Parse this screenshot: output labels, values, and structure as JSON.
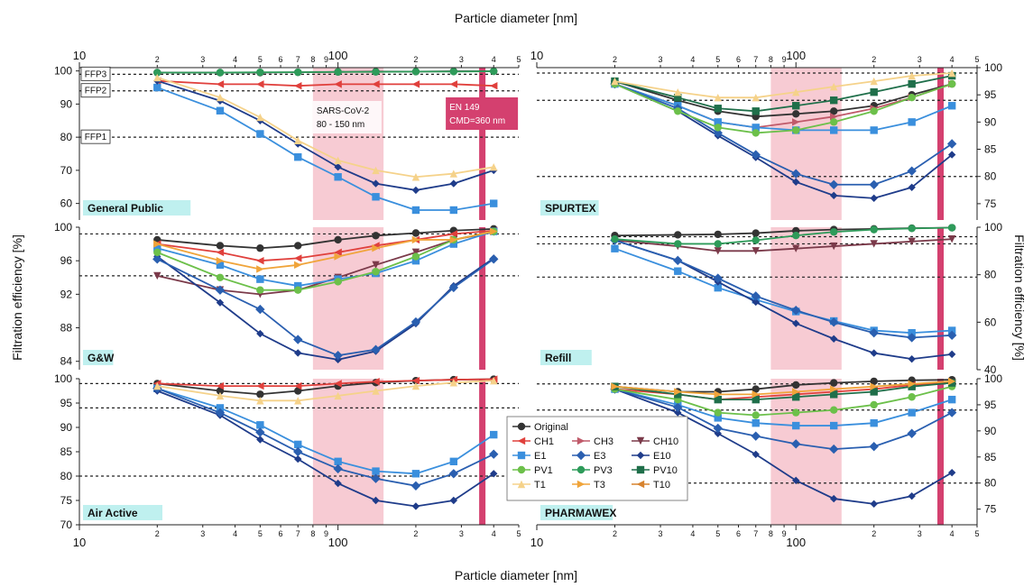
{
  "figure": {
    "top_xlabel": "Particle diameter [nm]",
    "bottom_xlabel": "Particle diameter [nm]",
    "left_ylabel": "Filtration efficiency [%]",
    "right_ylabel": "Filtration efficiency [%]",
    "band_color": "#f4b9c4",
    "mpps_line_color": "#d4406f",
    "sars_label": [
      "SARS-CoV-2",
      "80 - 150 nm"
    ],
    "en_label": [
      "EN 149",
      "CMD=360 nm"
    ],
    "ffp_labels": [
      "FFP3",
      "FFP2",
      "FFP1"
    ],
    "x_axis": {
      "scale": "log",
      "xlim": [
        10,
        500
      ],
      "decade_labels": [
        "10",
        "100"
      ],
      "minor_labels": [
        "2",
        "3",
        "4",
        "5",
        "6",
        "7",
        "8",
        "9",
        "2",
        "3",
        "4",
        "5"
      ]
    }
  },
  "legend": {
    "entries": [
      {
        "name": "Original",
        "color": "#333333",
        "marker": "circle"
      },
      {
        "name": "CH1",
        "color": "#e0403c",
        "marker": "triangle-left"
      },
      {
        "name": "CH3",
        "color": "#c05a6a",
        "marker": "triangle-right"
      },
      {
        "name": "CH10",
        "color": "#7b3a4a",
        "marker": "triangle-down"
      },
      {
        "name": "E1",
        "color": "#3a8fdd",
        "marker": "square"
      },
      {
        "name": "E3",
        "color": "#2a5fb0",
        "marker": "diamond"
      },
      {
        "name": "E10",
        "color": "#1f3c8a",
        "marker": "diamond-small"
      },
      {
        "name": "PV1",
        "color": "#6cc04a",
        "marker": "circle"
      },
      {
        "name": "PV3",
        "color": "#2e9b5a",
        "marker": "hexagon"
      },
      {
        "name": "PV10",
        "color": "#1f6f4a",
        "marker": "square"
      },
      {
        "name": "T1",
        "color": "#f5d28a",
        "marker": "triangle-up"
      },
      {
        "name": "T3",
        "color": "#f0a43a",
        "marker": "triangle-right"
      },
      {
        "name": "T10",
        "color": "#d7832f",
        "marker": "triangle-left"
      }
    ]
  },
  "chart_data": [
    {
      "type": "line",
      "panel_label": "General Public",
      "ylim": [
        55,
        101
      ],
      "yticks": [
        60,
        70,
        80,
        90,
        100
      ],
      "ref_lines": [
        99,
        94,
        80
      ],
      "x": [
        20,
        35,
        50,
        70,
        100,
        140,
        200,
        280,
        400
      ],
      "series": [
        {
          "name": "Original",
          "values": [
            99.5,
            99.5,
            99.5,
            99.6,
            99.7,
            99.8,
            99.8,
            99.9,
            99.9
          ]
        },
        {
          "name": "CH1",
          "values": [
            97,
            96,
            96,
            95.5,
            96,
            96,
            96,
            96,
            95.5
          ]
        },
        {
          "name": "E1",
          "values": [
            95,
            88,
            81,
            74,
            68,
            62,
            58,
            58,
            60
          ]
        },
        {
          "name": "E10",
          "values": [
            97,
            91,
            85,
            78,
            71,
            66,
            64,
            66,
            70
          ]
        },
        {
          "name": "PV3",
          "values": [
            99.5,
            99.5,
            99.6,
            99.6,
            99.7,
            99.7,
            99.8,
            99.8,
            99.9
          ]
        },
        {
          "name": "T1",
          "values": [
            98,
            92,
            86,
            79,
            73,
            70,
            68,
            69,
            71
          ]
        }
      ]
    },
    {
      "type": "line",
      "panel_label": "SPURTEX",
      "ylim": [
        72,
        100
      ],
      "yticks": [
        75,
        80,
        85,
        90,
        95,
        100
      ],
      "ref_lines": [
        99,
        94,
        80
      ],
      "x": [
        20,
        35,
        50,
        70,
        100,
        140,
        200,
        280,
        400
      ],
      "series": [
        {
          "name": "Original",
          "values": [
            97.5,
            94,
            92,
            91,
            91.5,
            92,
            93,
            95,
            97
          ]
        },
        {
          "name": "CH3",
          "values": [
            97,
            93,
            90,
            89,
            90,
            91,
            92.5,
            94.5,
            97
          ]
        },
        {
          "name": "E1",
          "values": [
            97,
            93,
            90,
            89,
            88.5,
            88.5,
            88.5,
            90,
            93
          ]
        },
        {
          "name": "E10",
          "values": [
            97,
            92,
            87.5,
            83.5,
            79,
            76.5,
            76,
            78,
            84
          ]
        },
        {
          "name": "E3",
          "values": [
            97,
            92.5,
            88,
            84,
            80.5,
            78.5,
            78.5,
            81,
            86
          ]
        },
        {
          "name": "PV1",
          "values": [
            97,
            92,
            89,
            88,
            88.5,
            90,
            92,
            94.5,
            97
          ]
        },
        {
          "name": "PV10",
          "values": [
            97.5,
            94.5,
            92.5,
            92,
            93,
            94,
            95.5,
            97,
            98.5
          ]
        },
        {
          "name": "T1",
          "values": [
            97.5,
            95.5,
            94.5,
            94.5,
            95.5,
            96.5,
            97.5,
            98.5,
            99
          ]
        }
      ]
    },
    {
      "type": "line",
      "panel_label": "G&W",
      "ylim": [
        83,
        100
      ],
      "yticks": [
        84,
        88,
        92,
        96,
        100
      ],
      "ref_lines": [
        99.2,
        94.2
      ],
      "x": [
        20,
        35,
        50,
        70,
        100,
        140,
        200,
        280,
        400
      ],
      "series": [
        {
          "name": "Original",
          "values": [
            98.5,
            97.8,
            97.5,
            97.8,
            98.5,
            99,
            99.3,
            99.6,
            99.8
          ]
        },
        {
          "name": "CH1",
          "values": [
            98,
            97,
            96,
            96.3,
            97,
            97.8,
            98.5,
            99.2,
            99.6
          ]
        },
        {
          "name": "CH10",
          "values": [
            94.2,
            92.5,
            92,
            92.5,
            94,
            95.5,
            97,
            98.5,
            99.4
          ]
        },
        {
          "name": "E1",
          "values": [
            97.5,
            95.5,
            93.8,
            93,
            93.8,
            94.5,
            96,
            98,
            99.5
          ]
        },
        {
          "name": "E10",
          "values": [
            96.5,
            91,
            87.3,
            85,
            84.2,
            85.2,
            88.5,
            93,
            96.3
          ]
        },
        {
          "name": "E3",
          "values": [
            96.2,
            92.5,
            90.2,
            86.6,
            84.7,
            85.4,
            88.7,
            92.8,
            96.2
          ]
        },
        {
          "name": "PV1",
          "values": [
            97,
            94,
            92.5,
            92.5,
            93.5,
            94.7,
            96.5,
            98.5,
            99.5
          ]
        },
        {
          "name": "T3",
          "values": [
            98,
            96,
            95,
            95.5,
            96.5,
            97.5,
            98.5,
            98.5,
            99.5
          ]
        }
      ]
    },
    {
      "type": "line",
      "panel_label": "Refill",
      "ylim": [
        40,
        100
      ],
      "yticks": [
        40,
        60,
        80,
        100
      ],
      "ref_lines": [
        96,
        93,
        79
      ],
      "x": [
        20,
        35,
        50,
        70,
        100,
        140,
        200,
        280,
        400
      ],
      "series": [
        {
          "name": "Original",
          "values": [
            96.5,
            96.8,
            97,
            97.5,
            98.5,
            99,
            99.3,
            99.6,
            99.8
          ]
        },
        {
          "name": "CH10",
          "values": [
            94.5,
            92,
            90,
            90,
            91,
            92,
            93,
            94,
            95
          ]
        },
        {
          "name": "E1",
          "values": [
            91,
            81.5,
            74.5,
            69.5,
            64.5,
            60.5,
            56.5,
            55.5,
            56.5
          ]
        },
        {
          "name": "E10",
          "values": [
            94.5,
            86,
            77,
            68.5,
            59.5,
            53,
            47,
            44.5,
            46.5
          ]
        },
        {
          "name": "E3",
          "values": [
            94.5,
            86,
            78.5,
            71,
            65,
            60,
            55.5,
            53.5,
            54.5
          ]
        },
        {
          "name": "PV3",
          "values": [
            95,
            93,
            93,
            94.5,
            96.5,
            98,
            99,
            99.5,
            99.8
          ]
        }
      ]
    },
    {
      "type": "line",
      "panel_label": "Air Active",
      "ylim": [
        70,
        100
      ],
      "yticks": [
        70,
        75,
        80,
        85,
        90,
        95,
        100
      ],
      "ref_lines": [
        99,
        94,
        80
      ],
      "x": [
        20,
        35,
        50,
        70,
        100,
        140,
        200,
        280,
        400
      ],
      "series": [
        {
          "name": "Original",
          "values": [
            99,
            97.5,
            96.8,
            97.5,
            98.5,
            99.2,
            99.6,
            99.8,
            99.9
          ]
        },
        {
          "name": "CH1",
          "values": [
            99,
            98.5,
            98.5,
            98.5,
            99,
            99.4,
            99.6,
            99.8,
            99.9
          ]
        },
        {
          "name": "E1",
          "values": [
            98,
            94,
            90.5,
            86.5,
            83,
            81,
            80.5,
            83,
            88.5
          ]
        },
        {
          "name": "E10",
          "values": [
            97.5,
            92.5,
            87.5,
            83.5,
            78.5,
            75,
            73.8,
            75,
            80.5
          ]
        },
        {
          "name": "E3",
          "values": [
            98,
            93,
            89,
            85,
            81.5,
            79.5,
            78,
            80.5,
            84.5
          ]
        },
        {
          "name": "T1",
          "values": [
            98.5,
            96.5,
            95.5,
            95.5,
            96.5,
            97.5,
            98.5,
            99.2,
            99.6
          ]
        }
      ]
    },
    {
      "type": "line",
      "panel_label": "PHARMAWEX",
      "ylim": [
        72,
        100
      ],
      "yticks": [
        75,
        80,
        85,
        90,
        95,
        100
      ],
      "ref_lines": [
        99,
        94,
        80
      ],
      "x": [
        20,
        35,
        50,
        70,
        100,
        140,
        200,
        280,
        400
      ],
      "series": [
        {
          "name": "Original",
          "values": [
            98.5,
            97.5,
            97.5,
            98,
            98.8,
            99.2,
            99.5,
            99.7,
            99.8
          ]
        },
        {
          "name": "CH1",
          "values": [
            98,
            97,
            96,
            96.5,
            97,
            97.5,
            98,
            98.8,
            99.3
          ]
        },
        {
          "name": "E1",
          "values": [
            98,
            95,
            92.5,
            91.5,
            91,
            91,
            91.5,
            93.5,
            96
          ]
        },
        {
          "name": "E10",
          "values": [
            98,
            93.5,
            89.5,
            85.5,
            80.5,
            77,
            76,
            77.5,
            82
          ]
        },
        {
          "name": "E3",
          "values": [
            98,
            94.5,
            90.5,
            89,
            87.5,
            86.5,
            87,
            89.5,
            93.5
          ]
        },
        {
          "name": "PV1",
          "values": [
            98,
            96,
            93.5,
            93,
            93.5,
            94,
            95,
            96.5,
            98.5
          ]
        },
        {
          "name": "PV10",
          "values": [
            98.5,
            97,
            96,
            96,
            96.5,
            97,
            97.5,
            98.5,
            99.2
          ]
        },
        {
          "name": "T3",
          "values": [
            98.5,
            97.5,
            97,
            97,
            97.5,
            98,
            98.5,
            99,
            99.5
          ]
        }
      ]
    }
  ]
}
